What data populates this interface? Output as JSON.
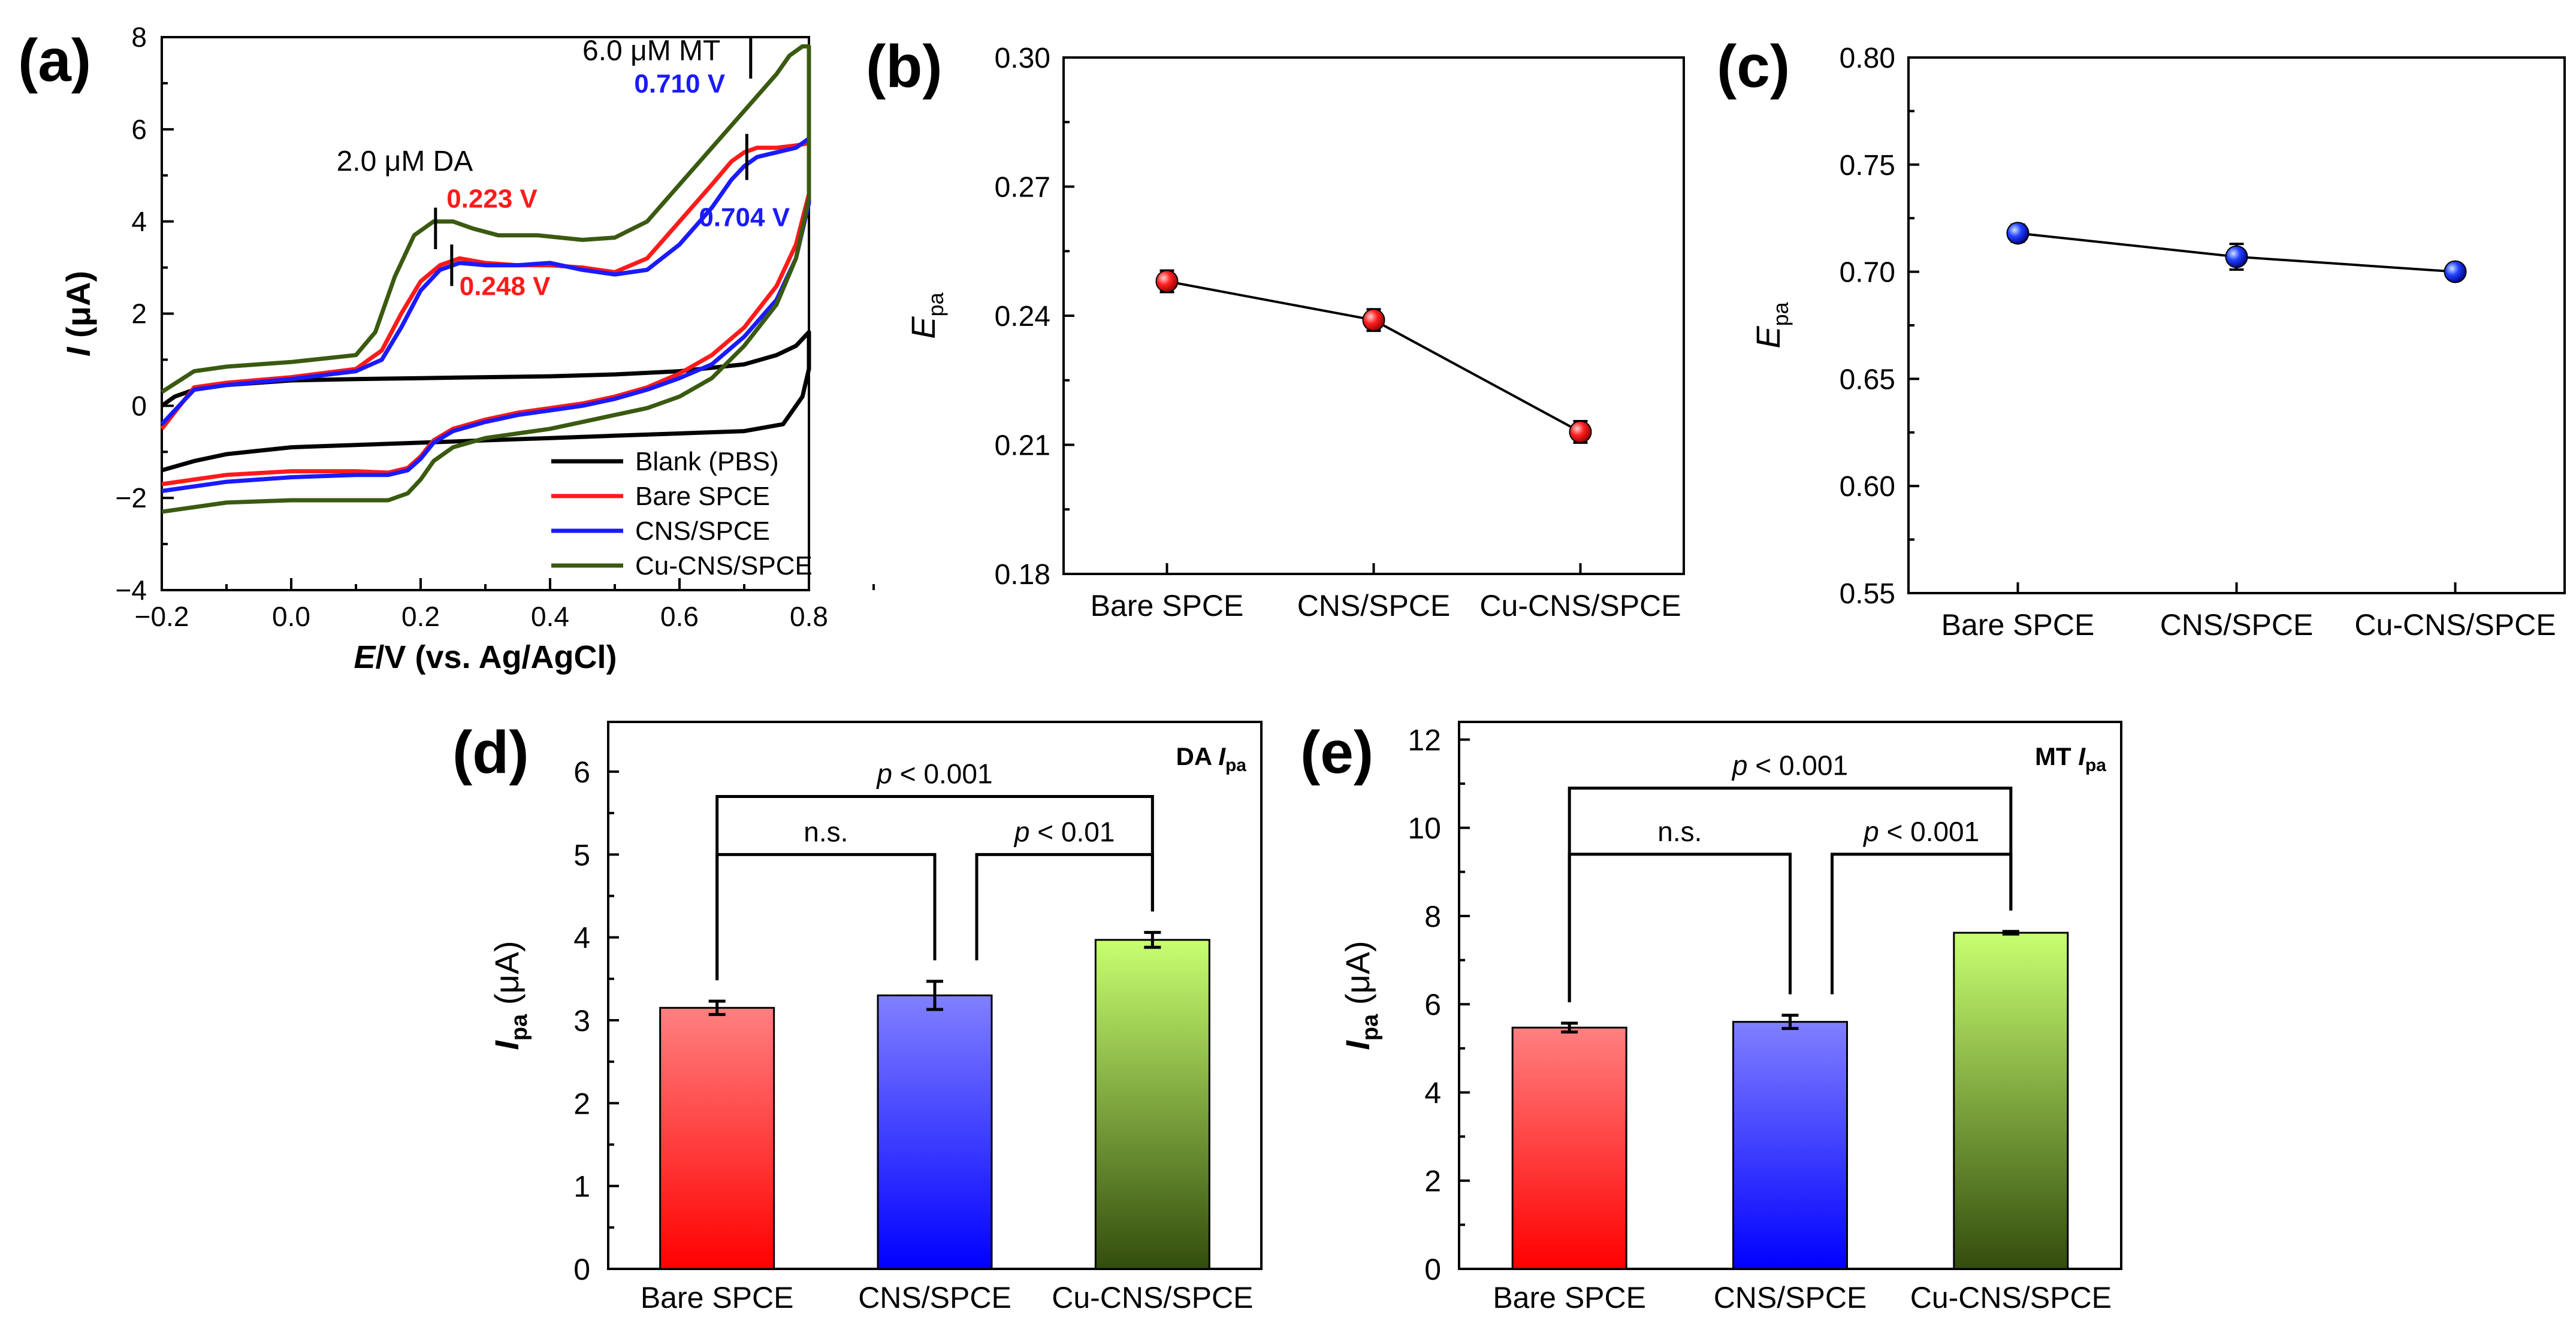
{
  "figure": {
    "panel_labels": [
      "(a)",
      "(b)",
      "(c)",
      "(d)",
      "(e)"
    ]
  },
  "colors": {
    "blank": "#000000",
    "bare": "#ff1a1a",
    "cns": "#1a1aff",
    "cu": "#3a5a10",
    "bare_bar_top": "#ff8080",
    "bare_bar_bottom": "#ff0000",
    "cns_bar_top": "#8080ff",
    "cns_bar_bottom": "#0000ff",
    "cu_bar_top": "#c8ff70",
    "cu_bar_bottom": "#334d0d",
    "dot_red": "#e00000",
    "dot_blue": "#1030e0"
  },
  "chart_data": [
    {
      "id": "a",
      "type": "line",
      "title": "",
      "xlabel": "E/V (vs. Ag/AgCl)",
      "ylabel": "I (μA)",
      "xlim": [
        -0.2,
        0.8
      ],
      "ylim": [
        -4,
        8
      ],
      "xticks": [
        -0.2,
        0.0,
        0.2,
        0.4,
        0.6,
        0.8
      ],
      "xtick_labels": [
        "−0.2",
        "0.0",
        "0.2",
        "0.4",
        "0.6",
        "0.8"
      ],
      "yticks": [
        -4,
        -2,
        0,
        2,
        4,
        6,
        8
      ],
      "ytick_labels": [
        "−4",
        "−2",
        "0",
        "2",
        "4",
        "6",
        "8"
      ],
      "series": [
        {
          "name": "Blank (PBS)",
          "color": "#000000",
          "x": [
            -0.2,
            -0.18,
            -0.15,
            -0.1,
            0.0,
            0.1,
            0.2,
            0.3,
            0.4,
            0.5,
            0.6,
            0.7,
            0.75,
            0.78,
            0.8,
            0.8,
            0.79,
            0.76,
            0.7,
            0.6,
            0.5,
            0.4,
            0.3,
            0.2,
            0.1,
            0.0,
            -0.1,
            -0.15,
            -0.2
          ],
          "y": [
            0.0,
            0.2,
            0.35,
            0.45,
            0.55,
            0.58,
            0.6,
            0.62,
            0.64,
            0.68,
            0.75,
            0.9,
            1.1,
            1.3,
            1.6,
            0.8,
            0.2,
            -0.4,
            -0.55,
            -0.6,
            -0.65,
            -0.7,
            -0.75,
            -0.8,
            -0.85,
            -0.9,
            -1.05,
            -1.2,
            -1.4
          ]
        },
        {
          "name": "Bare SPCE",
          "color": "#ff1a1a",
          "x": [
            -0.2,
            -0.15,
            -0.1,
            0.0,
            0.1,
            0.14,
            0.17,
            0.2,
            0.23,
            0.26,
            0.3,
            0.35,
            0.4,
            0.45,
            0.5,
            0.55,
            0.6,
            0.65,
            0.68,
            0.7,
            0.72,
            0.75,
            0.78,
            0.8,
            0.8,
            0.78,
            0.75,
            0.7,
            0.65,
            0.6,
            0.55,
            0.5,
            0.45,
            0.4,
            0.35,
            0.3,
            0.25,
            0.22,
            0.2,
            0.18,
            0.15,
            0.1,
            0.0,
            -0.1,
            -0.2
          ],
          "y": [
            -0.5,
            0.4,
            0.5,
            0.62,
            0.8,
            1.2,
            2.0,
            2.7,
            3.05,
            3.2,
            3.1,
            3.05,
            3.05,
            3.0,
            2.9,
            3.2,
            4.0,
            4.8,
            5.3,
            5.5,
            5.6,
            5.6,
            5.65,
            5.7,
            4.6,
            3.5,
            2.6,
            1.7,
            1.1,
            0.7,
            0.4,
            0.2,
            0.05,
            -0.05,
            -0.15,
            -0.3,
            -0.5,
            -0.75,
            -1.1,
            -1.35,
            -1.45,
            -1.42,
            -1.42,
            -1.5,
            -1.7
          ]
        },
        {
          "name": "CNS/SPCE",
          "color": "#1a1aff",
          "x": [
            -0.2,
            -0.15,
            -0.1,
            0.0,
            0.1,
            0.14,
            0.17,
            0.2,
            0.23,
            0.26,
            0.3,
            0.35,
            0.4,
            0.45,
            0.5,
            0.55,
            0.6,
            0.65,
            0.68,
            0.7,
            0.72,
            0.75,
            0.78,
            0.8,
            0.8,
            0.78,
            0.75,
            0.7,
            0.65,
            0.6,
            0.55,
            0.5,
            0.45,
            0.4,
            0.35,
            0.3,
            0.25,
            0.22,
            0.2,
            0.18,
            0.15,
            0.1,
            0.0,
            -0.1,
            -0.2
          ],
          "y": [
            -0.4,
            0.35,
            0.45,
            0.58,
            0.75,
            1.0,
            1.7,
            2.5,
            2.95,
            3.1,
            3.05,
            3.05,
            3.1,
            2.95,
            2.85,
            2.95,
            3.5,
            4.3,
            4.9,
            5.2,
            5.4,
            5.5,
            5.6,
            5.8,
            4.4,
            3.2,
            2.3,
            1.5,
            0.9,
            0.6,
            0.35,
            0.15,
            0.0,
            -0.1,
            -0.2,
            -0.35,
            -0.55,
            -0.8,
            -1.15,
            -1.4,
            -1.5,
            -1.5,
            -1.55,
            -1.65,
            -1.85
          ]
        },
        {
          "name": "Cu-CNS/SPCE",
          "color": "#3a5a10",
          "x": [
            -0.2,
            -0.15,
            -0.1,
            0.0,
            0.1,
            0.13,
            0.16,
            0.19,
            0.22,
            0.25,
            0.28,
            0.32,
            0.38,
            0.45,
            0.5,
            0.55,
            0.6,
            0.65,
            0.7,
            0.75,
            0.77,
            0.79,
            0.8,
            0.8,
            0.78,
            0.75,
            0.7,
            0.65,
            0.6,
            0.55,
            0.5,
            0.45,
            0.4,
            0.35,
            0.3,
            0.25,
            0.22,
            0.2,
            0.18,
            0.15,
            0.1,
            0.0,
            -0.1,
            -0.2
          ],
          "y": [
            0.3,
            0.75,
            0.85,
            0.95,
            1.1,
            1.6,
            2.8,
            3.7,
            4.0,
            4.0,
            3.85,
            3.7,
            3.7,
            3.6,
            3.65,
            4.0,
            4.8,
            5.6,
            6.4,
            7.2,
            7.6,
            7.8,
            7.8,
            4.5,
            3.2,
            2.2,
            1.3,
            0.6,
            0.2,
            -0.05,
            -0.2,
            -0.35,
            -0.5,
            -0.6,
            -0.7,
            -0.9,
            -1.2,
            -1.6,
            -1.9,
            -2.05,
            -2.05,
            -2.05,
            -2.1,
            -2.3
          ]
        }
      ],
      "annotations": [
        {
          "text": "6.0 μM MT",
          "x": 0.45,
          "y": 7.5,
          "color": "#000000"
        },
        {
          "text": "0.710 V",
          "x": 0.53,
          "y": 6.8,
          "color": "#1a1aff"
        },
        {
          "text": "2.0 μM DA",
          "x": 0.07,
          "y": 5.1,
          "color": "#000000"
        },
        {
          "text": "0.223 V",
          "x": 0.24,
          "y": 4.3,
          "color": "#ff1a1a"
        },
        {
          "text": "0.704 V",
          "x": 0.63,
          "y": 3.9,
          "color": "#1a1aff"
        },
        {
          "text": "0.248 V",
          "x": 0.26,
          "y": 2.4,
          "color": "#ff1a1a"
        }
      ],
      "peak_markers": [
        {
          "x": 0.71,
          "y1": 7.1,
          "y2": 8.0
        },
        {
          "x": 0.704,
          "y1": 4.9,
          "y2": 5.9
        },
        {
          "x": 0.223,
          "y1": 3.4,
          "y2": 4.3
        },
        {
          "x": 0.248,
          "y1": 2.6,
          "y2": 3.5
        }
      ],
      "legend": "bottom-right"
    },
    {
      "id": "b",
      "type": "line",
      "title": "",
      "xlabel": "",
      "ylabel": "E",
      "ylabel_sub": "pa",
      "categories": [
        "Bare SPCE",
        "CNS/SPCE",
        "Cu-CNS/SPCE"
      ],
      "values": [
        0.248,
        0.239,
        0.213
      ],
      "errors": [
        0.0025,
        0.0025,
        0.0025
      ],
      "ylim": [
        0.18,
        0.3
      ],
      "yticks": [
        0.18,
        0.21,
        0.24,
        0.27,
        0.3
      ],
      "ytick_labels": [
        "0.18",
        "0.21",
        "0.24",
        "0.27",
        "0.30"
      ],
      "marker_color": "#e00000"
    },
    {
      "id": "c",
      "type": "line",
      "title": "",
      "xlabel": "",
      "ylabel": "E",
      "ylabel_sub": "pa",
      "categories": [
        "Bare SPCE",
        "CNS/SPCE",
        "Cu-CNS/SPCE"
      ],
      "values": [
        0.718,
        0.707,
        0.7
      ],
      "errors": [
        0.004,
        0.006,
        0.002
      ],
      "ylim": [
        0.55,
        0.8
      ],
      "yticks": [
        0.55,
        0.6,
        0.65,
        0.7,
        0.75,
        0.8
      ],
      "ytick_labels": [
        "0.55",
        "0.60",
        "0.65",
        "0.70",
        "0.75",
        "0.80"
      ],
      "marker_color": "#1030e0"
    },
    {
      "id": "d",
      "type": "bar",
      "title": "DA I",
      "title_sub": "pa",
      "xlabel": "",
      "ylabel": "I",
      "ylabel_sub": "pa",
      "ylabel_unit": " (μA)",
      "categories": [
        "Bare SPCE",
        "CNS/SPCE",
        "Cu-CNS/SPCE"
      ],
      "values": [
        3.15,
        3.3,
        3.97
      ],
      "errors": [
        0.08,
        0.17,
        0.09
      ],
      "ylim": [
        0,
        6.6
      ],
      "yticks": [
        0,
        1,
        2,
        3,
        4,
        5,
        6
      ],
      "ytick_labels": [
        "0",
        "1",
        "2",
        "3",
        "4",
        "5",
        "6"
      ],
      "significance": [
        {
          "from": 0,
          "to": 1,
          "level": 5.0,
          "label": "n.s.",
          "italic_p": false
        },
        {
          "from": 1,
          "to": 2,
          "level": 5.0,
          "label_p": "p",
          "label": " < 0.01",
          "italic_p": true
        },
        {
          "from": 0,
          "to": 2,
          "level": 5.7,
          "label_p": "p",
          "label": " < 0.001",
          "italic_p": true
        }
      ]
    },
    {
      "id": "e",
      "type": "bar",
      "title": "MT I",
      "title_sub": "pa",
      "xlabel": "",
      "ylabel": "I",
      "ylabel_sub": "pa",
      "ylabel_unit": " (μA)",
      "categories": [
        "Bare SPCE",
        "CNS/SPCE",
        "Cu-CNS/SPCE"
      ],
      "values": [
        5.47,
        5.6,
        7.62
      ],
      "errors": [
        0.1,
        0.15,
        0.03
      ],
      "ylim": [
        0,
        12.4
      ],
      "yticks": [
        0,
        2,
        4,
        6,
        8,
        10,
        12
      ],
      "ytick_labels": [
        "0",
        "2",
        "4",
        "6",
        "8",
        "10",
        "12"
      ],
      "significance": [
        {
          "from": 0,
          "to": 1,
          "level": 9.4,
          "label": "n.s.",
          "italic_p": false
        },
        {
          "from": 1,
          "to": 2,
          "level": 9.4,
          "label_p": "p",
          "label": " < 0.001",
          "italic_p": true
        },
        {
          "from": 0,
          "to": 2,
          "level": 10.9,
          "label_p": "p",
          "label": " < 0.001",
          "italic_p": true
        }
      ]
    }
  ]
}
